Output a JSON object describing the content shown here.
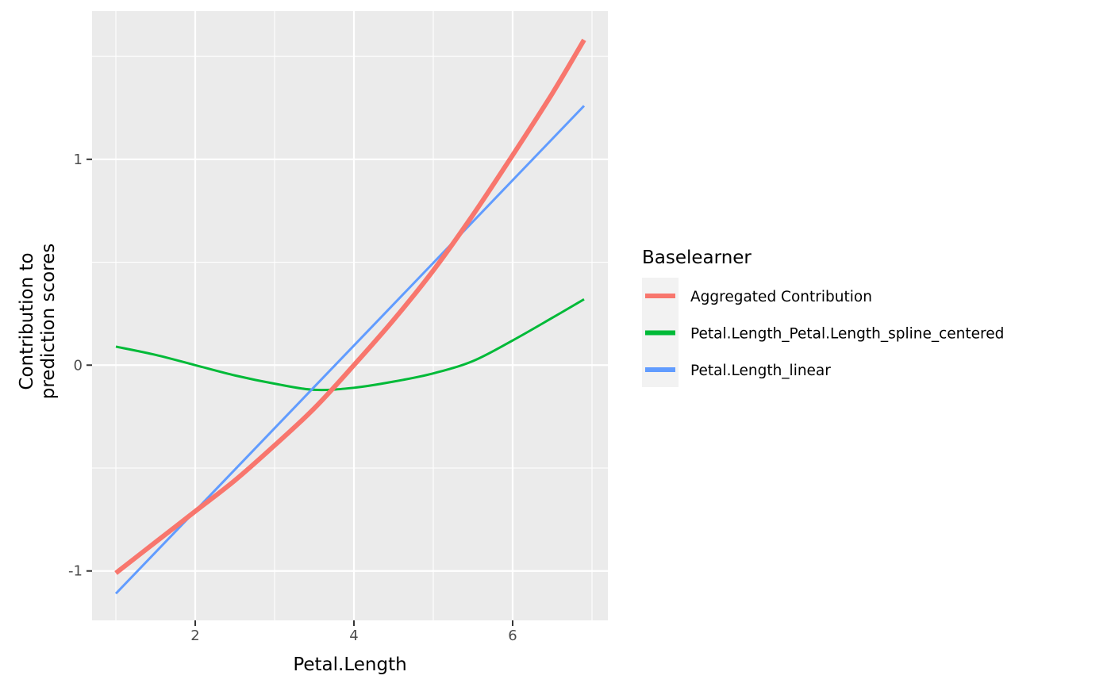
{
  "chart_data": {
    "type": "line",
    "title": "",
    "xlabel": "Petal.Length",
    "ylabel_lines": [
      "Contribution to",
      "prediction scores"
    ],
    "xlim": [
      0.7,
      7.2
    ],
    "ylim": [
      -1.24,
      1.72
    ],
    "x_ticks": [
      2,
      4,
      6
    ],
    "x_tick_labels": [
      "2",
      "4",
      "6"
    ],
    "y_ticks": [
      -1,
      0,
      1
    ],
    "y_tick_labels": [
      "-1",
      "0",
      "1"
    ],
    "grid": true,
    "legend": {
      "title": "Baselearner",
      "position": "right"
    },
    "series": [
      {
        "name": "Aggregated Contribution",
        "color": "#F8766D",
        "width": "thick",
        "x": [
          1.0,
          1.5,
          2.0,
          2.5,
          3.0,
          3.5,
          4.0,
          4.5,
          5.0,
          5.5,
          6.0,
          6.5,
          6.9
        ],
        "y": [
          -1.01,
          -0.86,
          -0.71,
          -0.56,
          -0.39,
          -0.21,
          0.0,
          0.22,
          0.46,
          0.73,
          1.02,
          1.32,
          1.58
        ]
      },
      {
        "name": "Petal.Length_Petal.Length_spline_centered",
        "color": "#00BA38",
        "width": "thin",
        "x": [
          1.0,
          1.5,
          2.0,
          2.5,
          3.0,
          3.5,
          4.0,
          4.5,
          5.0,
          5.5,
          6.0,
          6.5,
          6.9
        ],
        "y": [
          0.09,
          0.05,
          0.0,
          -0.05,
          -0.09,
          -0.12,
          -0.11,
          -0.08,
          -0.04,
          0.02,
          0.12,
          0.23,
          0.32
        ]
      },
      {
        "name": "Petal.Length_linear",
        "color": "#619CFF",
        "width": "thin",
        "x": [
          1.0,
          6.9
        ],
        "y": [
          -1.11,
          1.26
        ]
      }
    ]
  }
}
